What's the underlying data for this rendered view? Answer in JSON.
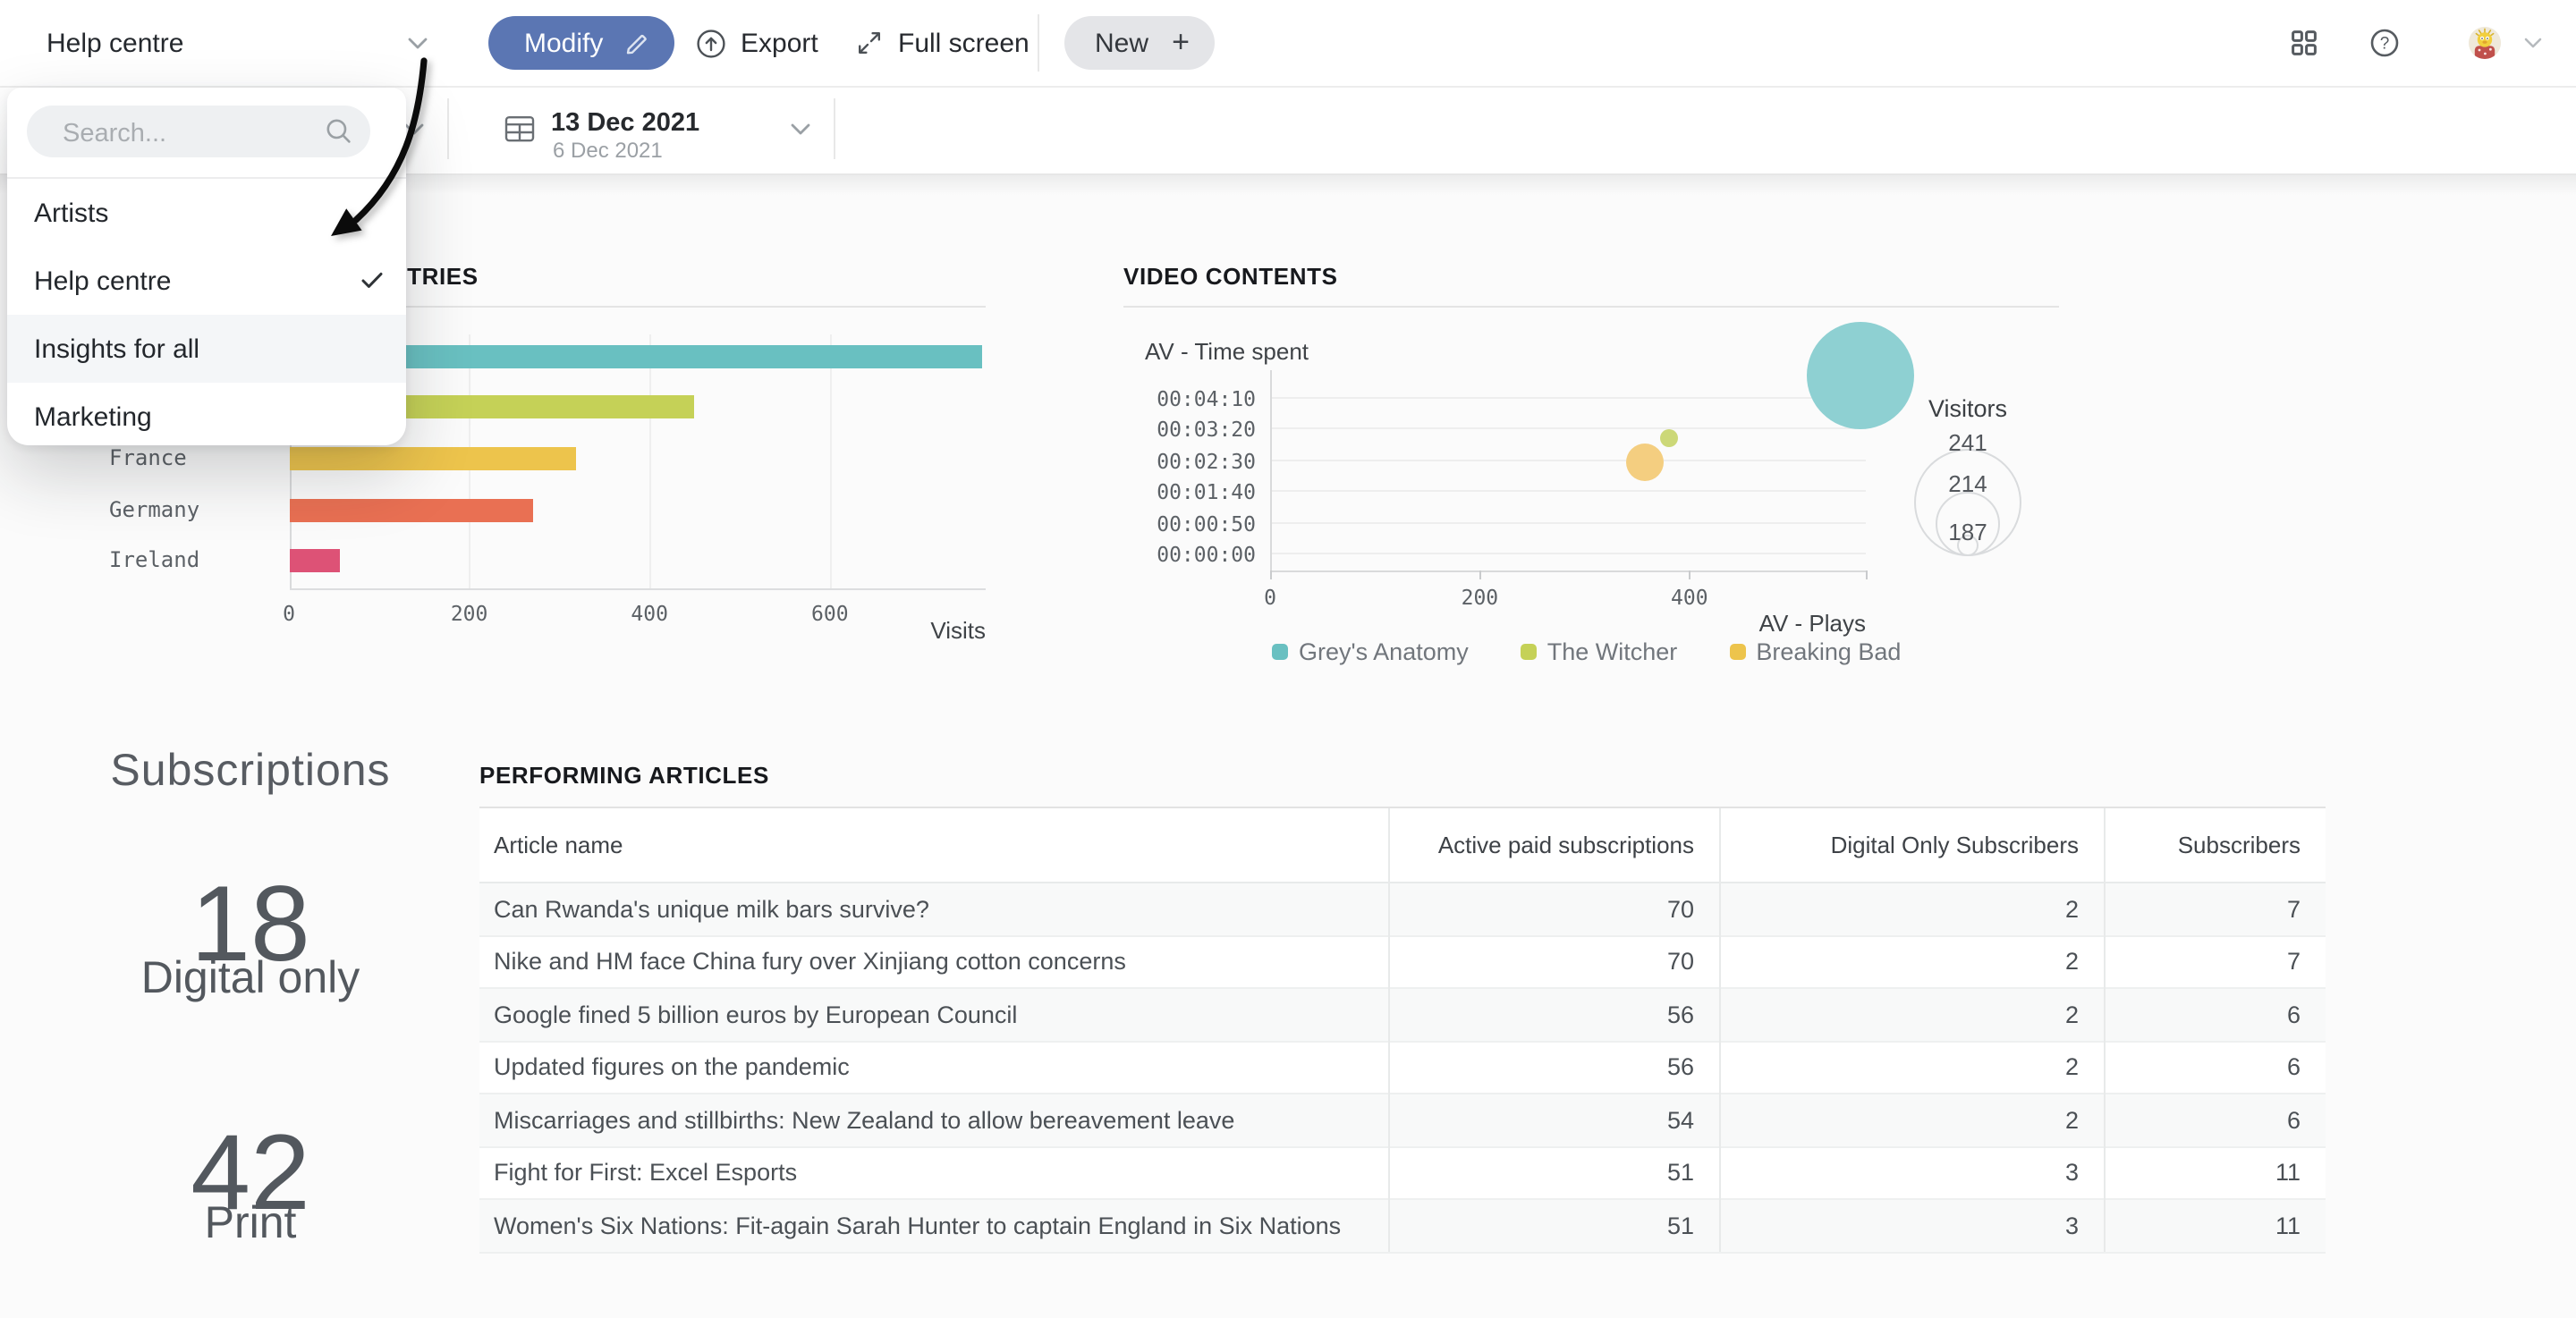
{
  "topbar": {
    "workspace_label": "Help centre",
    "modify_label": "Modify",
    "export_label": "Export",
    "fullscreen_label": "Full screen",
    "new_label": "New",
    "new_plus_glyph": "+",
    "help_glyph": "?"
  },
  "workspace_dropdown": {
    "search_placeholder": "Search...",
    "items": [
      {
        "label": "Artists",
        "selected": false,
        "highlighted": false
      },
      {
        "label": "Help centre",
        "selected": true,
        "highlighted": false
      },
      {
        "label": "Insights for all",
        "selected": false,
        "highlighted": true
      },
      {
        "label": "Marketing",
        "selected": false,
        "highlighted": false
      }
    ]
  },
  "filter_bar": {
    "date_primary": "13 Dec 2021",
    "date_secondary": "6 Dec 2021"
  },
  "chart_data": [
    {
      "type": "bar",
      "orientation": "horizontal",
      "title": "TOP COUNTRIES",
      "categories": [
        "",
        "",
        "France",
        "Germany",
        "Ireland"
      ],
      "values": [
        770,
        450,
        318,
        270,
        57
      ],
      "colors": [
        "#69c0c1",
        "#c5d157",
        "#edc44c",
        "#e97053",
        "#dd5276"
      ],
      "xlabel": "Visits",
      "xticks": [
        0,
        200,
        400,
        600
      ],
      "xlim": [
        0,
        772
      ],
      "grid": true
    },
    {
      "type": "scatter",
      "title": "VIDEO CONTENTS",
      "xlabel": "AV - Plays",
      "ylabel": "AV - Time spent",
      "xticks": [
        0,
        200,
        400
      ],
      "xlim": [
        0,
        570
      ],
      "yticks": [
        "00:04:10",
        "00:03:20",
        "00:02:30",
        "00:01:40",
        "00:00:50",
        "00:00:00"
      ],
      "grid": true,
      "legend_position": "bottom",
      "series": [
        {
          "name": "Grey's Anatomy",
          "color": "#69c0c1",
          "bubble_color": "#8ed0d2",
          "plays": 563,
          "time_spent": "00:04:45",
          "bubble_radius": 30
        },
        {
          "name": "The Witcher",
          "color": "#c5d157",
          "bubble_color": "#ccd878",
          "plays": 380,
          "time_spent": "00:03:05",
          "bubble_radius": 5
        },
        {
          "name": "Breaking Bad",
          "color": "#edc44c",
          "bubble_color": "#f4ce80",
          "plays": 357,
          "time_spent": "00:02:25",
          "bubble_radius": 10.5
        }
      ],
      "size_legend": {
        "label": "Visitors",
        "values": [
          "241",
          "214",
          "187"
        ],
        "radii": [
          30,
          18,
          6
        ]
      }
    }
  ],
  "subscriptions": {
    "title": "Subscriptions",
    "metrics": [
      {
        "value": "18",
        "label": "Digital only"
      },
      {
        "value": "42",
        "label": "Print"
      }
    ]
  },
  "articles_table": {
    "title": "PERFORMING ARTICLES",
    "columns": [
      "Article name",
      "Active paid subscriptions",
      "Digital Only Subscribers",
      "Subscribers"
    ],
    "rows": [
      [
        "Can Rwanda's unique milk bars survive?",
        "70",
        "2",
        "7"
      ],
      [
        "Nike and HM face China fury over Xinjiang cotton concerns",
        "70",
        "2",
        "7"
      ],
      [
        "Google fined 5 billion euros by European Council",
        "56",
        "2",
        "6"
      ],
      [
        "Updated figures on the pandemic",
        "56",
        "2",
        "6"
      ],
      [
        "Miscarriages and stillbirths: New Zealand to allow bereavement leave",
        "54",
        "2",
        "6"
      ],
      [
        "Fight for First: Excel Esports",
        "51",
        "3",
        "11"
      ],
      [
        "Women's Six Nations: Fit-again Sarah Hunter to captain England in Six Nations",
        "51",
        "3",
        "11"
      ]
    ]
  },
  "colors": {
    "accent_blue": "#5b76b3",
    "teal": "#69c0c1",
    "green": "#c5d157",
    "gold": "#edc44c",
    "orange": "#e97053",
    "pink": "#dd5276"
  }
}
